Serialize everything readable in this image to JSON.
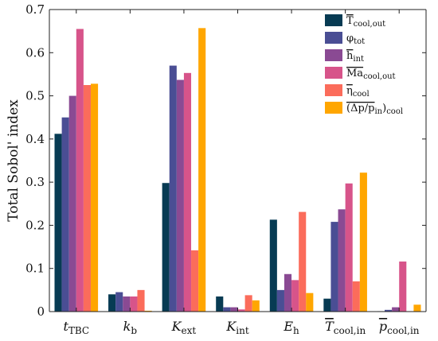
{
  "chart_data": {
    "type": "bar",
    "ylabel": "Total Sobol' index",
    "ylim": [
      0,
      0.7
    ],
    "yticks": [
      0,
      0.1,
      0.2,
      0.3,
      0.4,
      0.5,
      0.6,
      0.7
    ],
    "ytick_labels": [
      "0",
      "0.1",
      "0.2",
      "0.3",
      "0.4",
      "0.5",
      "0.6",
      "0.7"
    ],
    "legend_placement": "top-right",
    "grid": false,
    "categories": [
      {
        "main": "t",
        "sub": "TBC",
        "overline": false
      },
      {
        "main": "k",
        "sub": "b",
        "overline": false
      },
      {
        "main": "K",
        "sub": "ext",
        "overline": false
      },
      {
        "main": "K",
        "sub": "int",
        "overline": false
      },
      {
        "main": "E",
        "sub": "h",
        "overline": false
      },
      {
        "main": "T",
        "sub": "cool,in",
        "overline": true
      },
      {
        "main": "p",
        "sub": "cool,in",
        "overline": true
      }
    ],
    "series": [
      {
        "name": "T",
        "name_sub": "cool,out",
        "overline": true,
        "color": "#073b53",
        "values": [
          0.412,
          0.04,
          0.298,
          0.035,
          0.213,
          0.03,
          0.001
        ]
      },
      {
        "name": "φ",
        "name_sub": "tot",
        "overline": false,
        "color": "#4a4e94",
        "values": [
          0.45,
          0.045,
          0.57,
          0.01,
          0.05,
          0.208,
          0.004
        ]
      },
      {
        "name": "h",
        "name_sub": "int",
        "overline": true,
        "color": "#8a4a93",
        "values": [
          0.5,
          0.035,
          0.537,
          0.01,
          0.087,
          0.237,
          0.01
        ]
      },
      {
        "name": "Ma",
        "name_sub": "cool,out",
        "overline": true,
        "color": "#d7548a",
        "values": [
          0.655,
          0.035,
          0.553,
          0.005,
          0.073,
          0.297,
          0.116
        ]
      },
      {
        "name": "η",
        "name_sub": "cool",
        "overline": true,
        "color": "#fb6c5b",
        "values": [
          0.525,
          0.05,
          0.142,
          0.038,
          0.231,
          0.07,
          0.001
        ]
      },
      {
        "name": "(Δp/p",
        "name_sub": "in",
        "name_tail": ")",
        "name_tail_sub": "cool",
        "overline": true,
        "color": "#ffa600",
        "values": [
          0.528,
          0.002,
          0.657,
          0.026,
          0.043,
          0.322,
          0.016
        ]
      }
    ]
  }
}
